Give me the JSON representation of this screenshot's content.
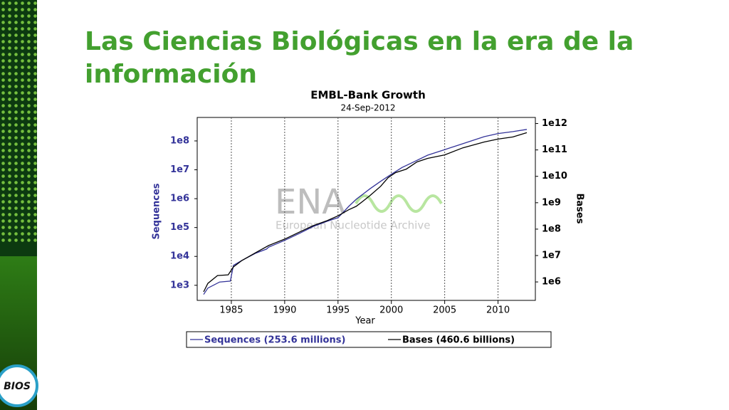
{
  "slide": {
    "title": "Las Ciencias Biológicas en la era de la información",
    "logo": "BIOS"
  },
  "chart_data": {
    "type": "line",
    "title": "EMBL-Bank Growth",
    "subtitle": "24-Sep-2012",
    "xlabel": "Year",
    "ylabel": "Sequences",
    "y2label": "Bases",
    "annotations": [
      "ENA",
      "European Nucleotide Archive"
    ],
    "log_scale": true,
    "grid": "x",
    "xlim": [
      1981.8,
      2013.5
    ],
    "xticks": [
      1985,
      1990,
      1995,
      2000,
      2005,
      2010
    ],
    "ylim": [
      300,
      650000000
    ],
    "yticks": [
      {
        "value": 1000,
        "label": "1e3"
      },
      {
        "value": 10000,
        "label": "1e4"
      },
      {
        "value": 100000,
        "label": "1e5"
      },
      {
        "value": 1000000,
        "label": "1e6"
      },
      {
        "value": 10000000,
        "label": "1e7"
      },
      {
        "value": 100000000,
        "label": "1e8"
      }
    ],
    "y2lim": [
      200000,
      1700000000000
    ],
    "y2ticks": [
      {
        "value": 1000000,
        "label": "1e6"
      },
      {
        "value": 10000000,
        "label": "1e7"
      },
      {
        "value": 100000000,
        "label": "1e8"
      },
      {
        "value": 1000000000,
        "label": "1e9"
      },
      {
        "value": 10000000000,
        "label": "1e10"
      },
      {
        "value": 100000000000,
        "label": "1e11"
      },
      {
        "value": 1000000000000,
        "label": "1e12"
      }
    ],
    "series": [
      {
        "name": "Sequences (253.6 millions)",
        "color": "#333399",
        "x": [
          1982.4,
          1982.8,
          1983.9,
          1984.9,
          1985.2,
          1986.0,
          1987.3,
          1988.3,
          1988.5,
          1990.0,
          1991.4,
          1992.7,
          1994.0,
          1995.0,
          1995.4,
          1996.0,
          1996.7,
          1997.4,
          1998.0,
          1999.0,
          2000.0,
          2001.0,
          2002.0,
          2003.4,
          2005.0,
          2006.7,
          2008.7,
          2010.0,
          2011.4,
          2012.7
        ],
        "values": [
          480,
          800,
          1300,
          1400,
          4900,
          7300,
          13000,
          18000,
          21000,
          36000,
          63000,
          110000,
          165000,
          220000,
          310000,
          540000,
          950000,
          1500000,
          2200000,
          4000000,
          7000000,
          12000000,
          18000000,
          32000000,
          50000000,
          80000000,
          140000000,
          180000000,
          210000000,
          250000000
        ]
      },
      {
        "name": "Bases (460.6 billions)",
        "color": "#000000",
        "axis": "y2",
        "x": [
          1982.4,
          1982.8,
          1983.7,
          1984.7,
          1985.2,
          1986.0,
          1987.3,
          1988.5,
          1990.0,
          1991.4,
          1992.7,
          1994.0,
          1995.0,
          1996.0,
          1996.7,
          1997.4,
          1998.0,
          1999.0,
          1999.7,
          2000.4,
          2001.4,
          2002.4,
          2003.4,
          2005.0,
          2006.7,
          2008.7,
          2010.0,
          2011.4,
          2012.7
        ],
        "values": [
          420000,
          880000,
          1750000,
          1860000,
          3700000,
          6500000,
          13000000,
          24000000,
          42000000,
          78000000,
          137000000,
          210000000,
          320000000,
          540000000,
          730000000,
          1200000000,
          1870000000,
          4200000000,
          8900000000,
          13800000000,
          18700000000,
          35000000000,
          48000000000,
          65000000000,
          120000000000,
          200000000000,
          257000000000,
          310000000000,
          450000000000
        ]
      }
    ]
  }
}
